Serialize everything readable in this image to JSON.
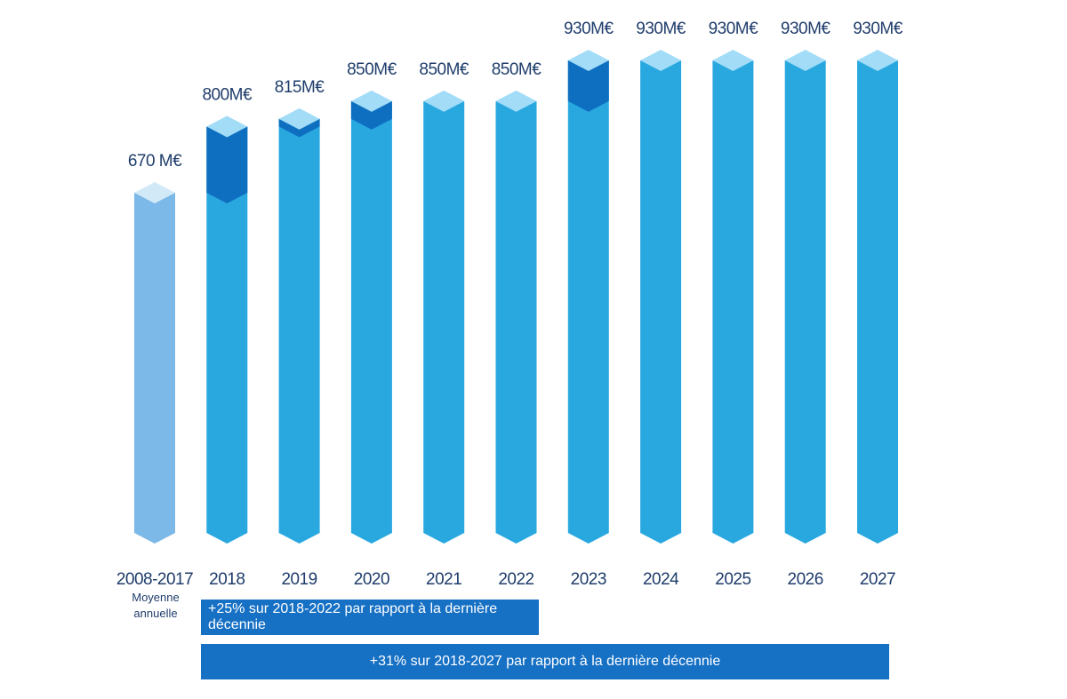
{
  "chart_data": {
    "type": "bar",
    "categories": [
      "2008-2017",
      "2018",
      "2019",
      "2020",
      "2021",
      "2022",
      "2023",
      "2024",
      "2025",
      "2026",
      "2027"
    ],
    "category_sublabel": {
      "index": 0,
      "lines": [
        "Moyenne",
        "annuelle"
      ]
    },
    "values": [
      670,
      800,
      815,
      850,
      850,
      850,
      930,
      930,
      930,
      930,
      930
    ],
    "increments": [
      0,
      130,
      15,
      35,
      0,
      0,
      80,
      0,
      0,
      0,
      0
    ],
    "value_labels": [
      "670 M€",
      "800M€",
      "815M€",
      "850M€",
      "850M€",
      "850M€",
      "930M€",
      "930M€",
      "930M€",
      "930M€",
      "930M€"
    ],
    "unit": "M€",
    "ylim": [
      0,
      930
    ],
    "colors": {
      "baseline_bar": "#7db9e8",
      "baseline_top": "#d2e9f8",
      "bar": "#29a8e0",
      "bar_top": "#a2dcf7",
      "increment": "#0e6fc1",
      "banner": "#1670c4"
    },
    "annotations": [
      "+25% sur 2018-2022 par rapport à la dernière décennie",
      "+31% sur 2018-2027 par rapport à la dernière décennie"
    ]
  }
}
